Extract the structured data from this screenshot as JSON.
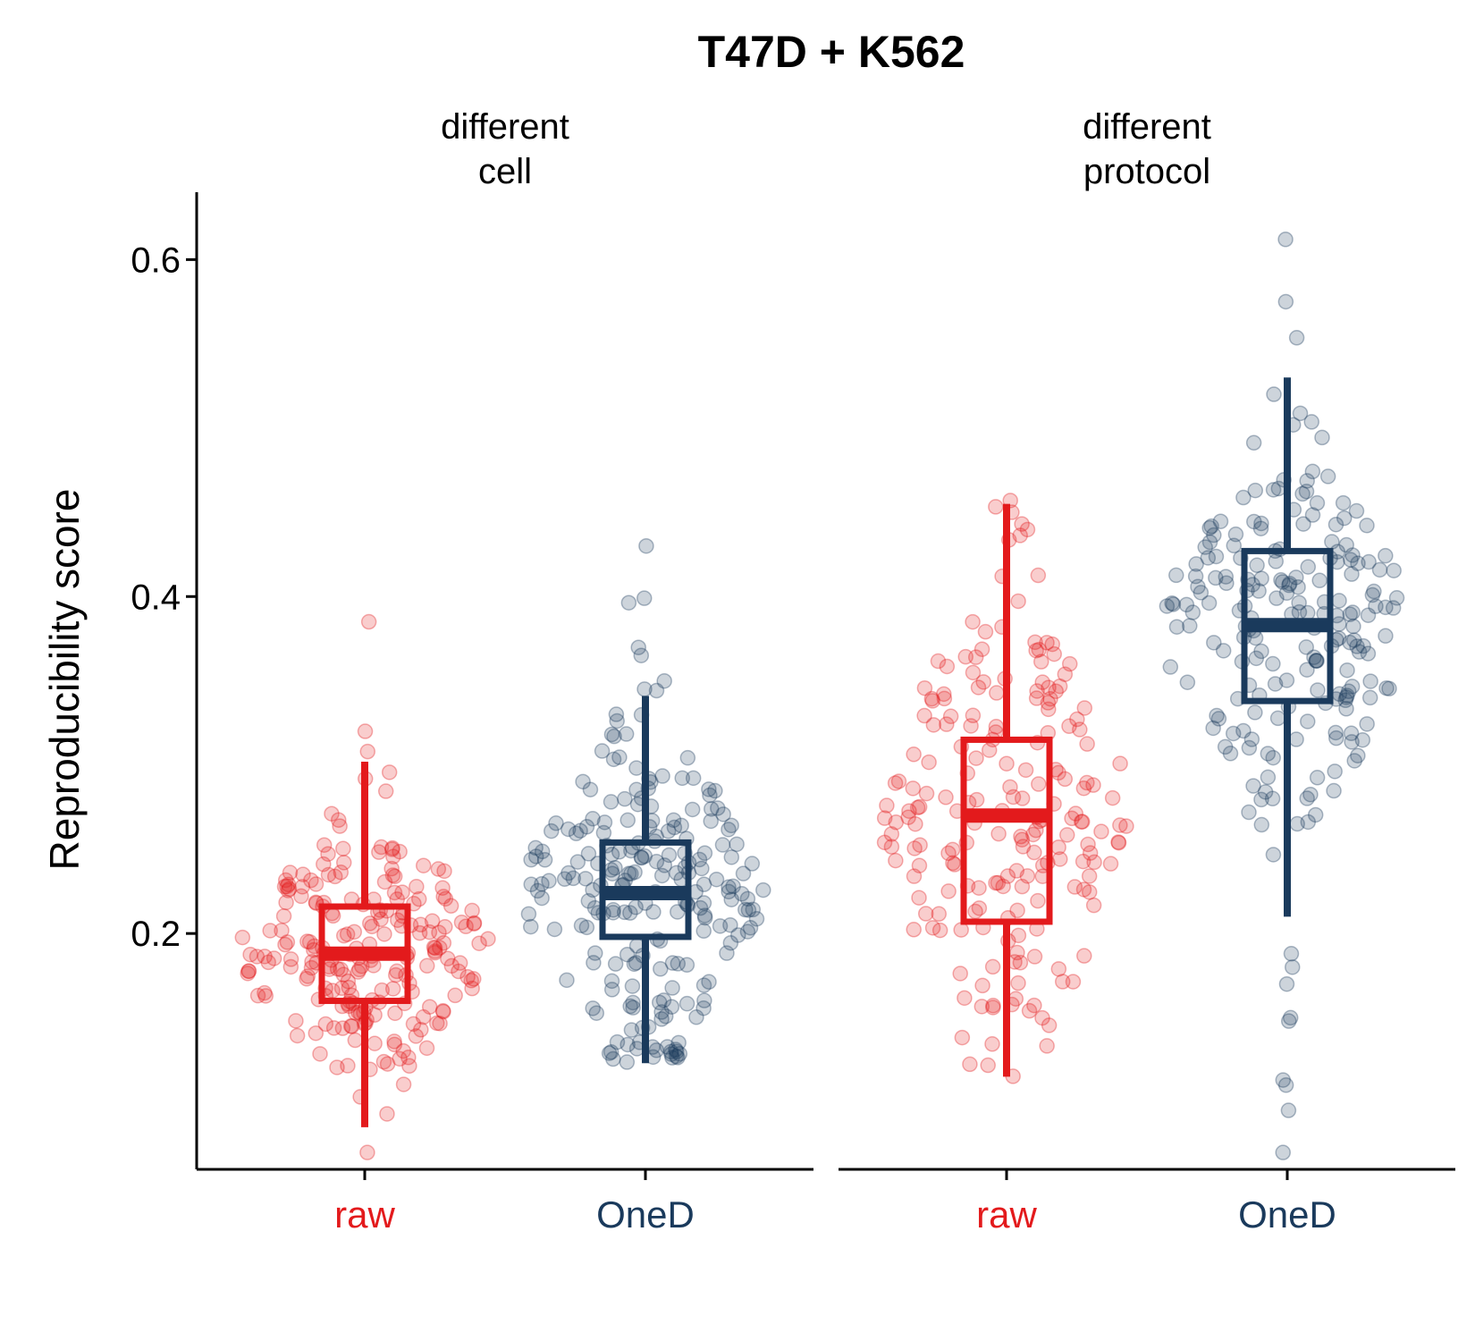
{
  "chart_data": {
    "type": "boxplot",
    "title": "T47D + K562",
    "ylabel": "Reproducibility score",
    "xlabel": "",
    "ylim": [
      0.06,
      0.64
    ],
    "yticks": [
      0.2,
      0.4,
      0.6
    ],
    "ytick_labels": [
      "0.2",
      "0.4",
      "0.6"
    ],
    "grid": false,
    "legend": "none",
    "colors": {
      "raw": "#e31a1c",
      "OneD": "#1a3a5c"
    },
    "panels": [
      {
        "strip_lines": [
          "different",
          "cell"
        ],
        "groups": [
          {
            "label": "raw",
            "color": "#e31a1c",
            "box": {
              "whisker_low": 0.085,
              "q1": 0.16,
              "median": 0.188,
              "q3": 0.216,
              "whisker_high": 0.302
            },
            "points_summary": {
              "n": 220,
              "center": 0.19,
              "spread": 0.04,
              "min": 0.07,
              "max": 0.385,
              "extra": [
                0.385,
                0.07,
                0.32,
                0.308
              ]
            }
          },
          {
            "label": "OneD",
            "color": "#1a3a5c",
            "box": {
              "whisker_low": 0.123,
              "q1": 0.198,
              "median": 0.224,
              "q3": 0.254,
              "whisker_high": 0.341
            },
            "points_summary": {
              "n": 220,
              "center": 0.225,
              "spread": 0.045,
              "min": 0.123,
              "max": 0.43,
              "extra": [
                0.43,
                0.399,
                0.365,
                0.345
              ]
            }
          }
        ]
      },
      {
        "strip_lines": [
          "different",
          "protocol"
        ],
        "groups": [
          {
            "label": "raw",
            "color": "#e31a1c",
            "box": {
              "whisker_low": 0.115,
              "q1": 0.207,
              "median": 0.27,
              "q3": 0.315,
              "whisker_high": 0.455
            },
            "points_summary": {
              "n": 200,
              "center": 0.265,
              "spread": 0.07,
              "min": 0.115,
              "max": 0.457,
              "extra": [
                0.457,
                0.45,
                0.412
              ]
            }
          },
          {
            "label": "OneD",
            "color": "#1a3a5c",
            "box": {
              "whisker_low": 0.21,
              "q1": 0.338,
              "median": 0.383,
              "q3": 0.427,
              "whisker_high": 0.53
            },
            "points_summary": {
              "n": 200,
              "center": 0.38,
              "spread": 0.055,
              "min": 0.07,
              "max": 0.612,
              "extra": [
                0.612,
                0.575,
                0.07,
                0.095,
                0.11,
                0.113,
                0.15,
                0.148,
                0.17,
                0.18,
                0.188
              ]
            }
          }
        ]
      }
    ]
  }
}
